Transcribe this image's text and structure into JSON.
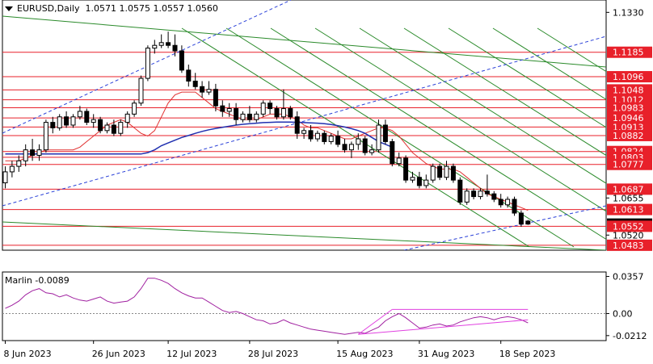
{
  "header": {
    "symbol_tf": "EURUSD,Daily",
    "ohlc": "1.0571 1.0575 1.0557 1.0560"
  },
  "indicator": {
    "name": "Marlin",
    "value": "-0.0089",
    "scale": [
      "0.0357",
      "0.00",
      "-0.0212"
    ]
  },
  "colors": {
    "resistance": "#e8202a",
    "channel_green": "#2a8a2a",
    "channel_blue": "#2a40d8",
    "ma_red": "#e03030",
    "ma_blue": "#2030b0",
    "oscillator": "#a020a0",
    "triangle": "#e040e0",
    "current_price": "#000000"
  },
  "chart_data": {
    "type": "candlestick",
    "title": "EURUSD,Daily",
    "ylim": [
      1.0465,
      1.1375
    ],
    "price_labels": [
      {
        "text": "1.1330",
        "value": 1.133,
        "style": "plain"
      },
      {
        "text": "1.1185",
        "value": 1.1185,
        "style": "red"
      },
      {
        "text": "1.1096",
        "value": 1.1096,
        "style": "red"
      },
      {
        "text": "1.1048",
        "value": 1.1048,
        "style": "red"
      },
      {
        "text": "1.1012",
        "value": 1.1012,
        "style": "red"
      },
      {
        "text": "1.0983",
        "value": 1.0983,
        "style": "red"
      },
      {
        "text": "1.0946",
        "value": 1.0946,
        "style": "red"
      },
      {
        "text": "1.0913",
        "value": 1.0913,
        "style": "red"
      },
      {
        "text": "1.0882",
        "value": 1.0882,
        "style": "red"
      },
      {
        "text": "1.0824",
        "value": 1.0824,
        "style": "red"
      },
      {
        "text": "1.0803",
        "value": 1.0803,
        "style": "red"
      },
      {
        "text": "1.0777",
        "value": 1.0777,
        "style": "red"
      },
      {
        "text": "1.0687",
        "value": 1.0687,
        "style": "red"
      },
      {
        "text": "1.0655",
        "value": 1.0655,
        "style": "plain"
      },
      {
        "text": "1.0613",
        "value": 1.0613,
        "style": "red"
      },
      {
        "text": "1.0560",
        "value": 1.056,
        "style": "current"
      },
      {
        "text": "1.0552",
        "value": 1.0552,
        "style": "red"
      },
      {
        "text": "1.0520",
        "value": 1.052,
        "style": "plain"
      },
      {
        "text": "1.0483",
        "value": 1.0483,
        "style": "red"
      }
    ],
    "x_tick_labels": [
      "8 Jun 2023",
      "26 Jun 2023",
      "12 Jul 2023",
      "28 Jul 2023",
      "15 Aug 2023",
      "31 Aug 2023",
      "18 Sep 2023"
    ],
    "x_tick_index": [
      0,
      13,
      24,
      36,
      49,
      61,
      73
    ],
    "candles": [
      [
        1.071,
        1.077,
        1.069,
        1.075
      ],
      [
        1.075,
        1.079,
        1.073,
        1.077
      ],
      [
        1.077,
        1.081,
        1.075,
        1.079
      ],
      [
        1.079,
        1.085,
        1.077,
        1.083
      ],
      [
        1.083,
        1.087,
        1.079,
        1.081
      ],
      [
        1.081,
        1.085,
        1.079,
        1.083
      ],
      [
        1.083,
        1.094,
        1.082,
        1.093
      ],
      [
        1.093,
        1.095,
        1.089,
        1.091
      ],
      [
        1.091,
        1.096,
        1.09,
        1.095
      ],
      [
        1.095,
        1.097,
        1.091,
        1.092
      ],
      [
        1.092,
        1.096,
        1.091,
        1.095
      ],
      [
        1.095,
        1.099,
        1.094,
        1.097
      ],
      [
        1.097,
        1.098,
        1.092,
        1.093
      ],
      [
        1.093,
        1.096,
        1.091,
        1.094
      ],
      [
        1.094,
        1.095,
        1.089,
        1.09
      ],
      [
        1.09,
        1.093,
        1.089,
        1.092
      ],
      [
        1.092,
        1.094,
        1.088,
        1.089
      ],
      [
        1.089,
        1.094,
        1.088,
        1.093
      ],
      [
        1.093,
        1.097,
        1.091,
        1.096
      ],
      [
        1.096,
        1.101,
        1.095,
        1.1
      ],
      [
        1.1,
        1.11,
        1.099,
        1.109
      ],
      [
        1.109,
        1.121,
        1.108,
        1.12
      ],
      [
        1.12,
        1.123,
        1.118,
        1.121
      ],
      [
        1.121,
        1.125,
        1.12,
        1.122
      ],
      [
        1.122,
        1.126,
        1.12,
        1.121
      ],
      [
        1.121,
        1.125,
        1.117,
        1.119
      ],
      [
        1.119,
        1.121,
        1.111,
        1.112
      ],
      [
        1.112,
        1.114,
        1.106,
        1.108
      ],
      [
        1.108,
        1.111,
        1.105,
        1.106
      ],
      [
        1.106,
        1.108,
        1.102,
        1.104
      ],
      [
        1.104,
        1.108,
        1.103,
        1.105
      ],
      [
        1.105,
        1.107,
        1.097,
        1.099
      ],
      [
        1.099,
        1.101,
        1.095,
        1.097
      ],
      [
        1.097,
        1.1,
        1.095,
        1.098
      ],
      [
        1.098,
        1.1,
        1.092,
        1.094
      ],
      [
        1.094,
        1.097,
        1.093,
        1.096
      ],
      [
        1.096,
        1.099,
        1.093,
        1.094
      ],
      [
        1.094,
        1.097,
        1.093,
        1.096
      ],
      [
        1.096,
        1.101,
        1.095,
        1.1
      ],
      [
        1.1,
        1.101,
        1.096,
        1.098
      ],
      [
        1.098,
        1.099,
        1.094,
        1.095
      ],
      [
        1.095,
        1.105,
        1.094,
        1.098
      ],
      [
        1.098,
        1.099,
        1.094,
        1.095
      ],
      [
        1.095,
        1.097,
        1.087,
        1.089
      ],
      [
        1.089,
        1.091,
        1.087,
        1.09
      ],
      [
        1.09,
        1.092,
        1.086,
        1.087
      ],
      [
        1.087,
        1.09,
        1.086,
        1.089
      ],
      [
        1.089,
        1.09,
        1.085,
        1.086
      ],
      [
        1.086,
        1.089,
        1.085,
        1.088
      ],
      [
        1.088,
        1.09,
        1.084,
        1.085
      ],
      [
        1.085,
        1.087,
        1.082,
        1.083
      ],
      [
        1.083,
        1.086,
        1.08,
        1.085
      ],
      [
        1.085,
        1.089,
        1.083,
        1.087
      ],
      [
        1.087,
        1.088,
        1.081,
        1.082
      ],
      [
        1.082,
        1.085,
        1.081,
        1.083
      ],
      [
        1.083,
        1.094,
        1.082,
        1.092
      ],
      [
        1.092,
        1.094,
        1.085,
        1.086
      ],
      [
        1.086,
        1.087,
        1.077,
        1.078
      ],
      [
        1.078,
        1.082,
        1.077,
        1.08
      ],
      [
        1.08,
        1.081,
        1.071,
        1.072
      ],
      [
        1.072,
        1.075,
        1.071,
        1.073
      ],
      [
        1.073,
        1.075,
        1.069,
        1.07
      ],
      [
        1.07,
        1.074,
        1.069,
        1.072
      ],
      [
        1.072,
        1.078,
        1.071,
        1.077
      ],
      [
        1.077,
        1.078,
        1.072,
        1.073
      ],
      [
        1.073,
        1.079,
        1.072,
        1.077
      ],
      [
        1.077,
        1.078,
        1.071,
        1.072
      ],
      [
        1.072,
        1.073,
        1.063,
        1.064
      ],
      [
        1.064,
        1.069,
        1.063,
        1.068
      ],
      [
        1.068,
        1.069,
        1.065,
        1.066
      ],
      [
        1.066,
        1.069,
        1.065,
        1.068
      ],
      [
        1.068,
        1.074,
        1.066,
        1.067
      ],
      [
        1.067,
        1.068,
        1.064,
        1.065
      ],
      [
        1.065,
        1.067,
        1.062,
        1.063
      ],
      [
        1.063,
        1.066,
        1.062,
        1.065
      ],
      [
        1.065,
        1.066,
        1.059,
        1.06
      ],
      [
        1.06,
        1.061,
        1.055,
        1.056
      ],
      [
        1.0571,
        1.0575,
        1.0557,
        1.056
      ]
    ],
    "ma_red": [
      1.079,
      1.079,
      1.079,
      1.08,
      1.081,
      1.082,
      1.083,
      1.083,
      1.083,
      1.083,
      1.083,
      1.084,
      1.086,
      1.088,
      1.09,
      1.092,
      1.093,
      1.094,
      1.093,
      1.091,
      1.089,
      1.088,
      1.09,
      1.095,
      1.1,
      1.103,
      1.104,
      1.104,
      1.104,
      1.102,
      1.1,
      1.098,
      1.097,
      1.096,
      1.095,
      1.094,
      1.094,
      1.094,
      1.095,
      1.096,
      1.096,
      1.096,
      1.095,
      1.094,
      1.092,
      1.091,
      1.091,
      1.09,
      1.089,
      1.088,
      1.087,
      1.087,
      1.088,
      1.089,
      1.09,
      1.091,
      1.091,
      1.09,
      1.088,
      1.085,
      1.082,
      1.08,
      1.078,
      1.077,
      1.076,
      1.076,
      1.076,
      1.075,
      1.073,
      1.071,
      1.069,
      1.067,
      1.066,
      1.065,
      1.064,
      1.063,
      1.062,
      1.061
    ],
    "ma_blue": [
      1.0815,
      1.0815,
      1.0815,
      1.0815,
      1.0815,
      1.0815,
      1.0815,
      1.0815,
      1.0815,
      1.0815,
      1.0815,
      1.0815,
      1.0815,
      1.0815,
      1.0815,
      1.0815,
      1.0815,
      1.0815,
      1.0815,
      1.0815,
      1.0815,
      1.082,
      1.083,
      1.0845,
      1.0855,
      1.0865,
      1.0875,
      1.0882,
      1.089,
      1.0897,
      1.0903,
      1.0908,
      1.0912,
      1.0916,
      1.092,
      1.0923,
      1.0925,
      1.0927,
      1.0929,
      1.093,
      1.0931,
      1.0931,
      1.0931,
      1.093,
      1.0929,
      1.0928,
      1.0927,
      1.0925,
      1.0922,
      1.0918,
      1.0913,
      1.0907,
      1.09,
      1.089,
      1.0875,
      1.086,
      1.085,
      1.084
    ],
    "indicator_values": [
      0.005,
      0.008,
      0.012,
      0.018,
      0.022,
      0.024,
      0.02,
      0.019,
      0.016,
      0.018,
      0.015,
      0.013,
      0.012,
      0.014,
      0.016,
      0.012,
      0.01,
      0.011,
      0.012,
      0.016,
      0.024,
      0.034,
      0.034,
      0.032,
      0.029,
      0.024,
      0.02,
      0.017,
      0.015,
      0.015,
      0.011,
      0.007,
      0.003,
      0.001,
      0.002,
      0.0,
      -0.003,
      -0.006,
      -0.007,
      -0.01,
      -0.009,
      -0.006,
      -0.009,
      -0.011,
      -0.013,
      -0.015,
      -0.016,
      -0.017,
      -0.018,
      -0.019,
      -0.02,
      -0.019,
      -0.018,
      -0.019,
      -0.016,
      -0.013,
      -0.007,
      -0.003,
      0.0,
      -0.004,
      -0.009,
      -0.014,
      -0.013,
      -0.011,
      -0.01,
      -0.012,
      -0.011,
      -0.008,
      -0.006,
      -0.004,
      -0.003,
      -0.004,
      -0.006,
      -0.004,
      -0.003,
      -0.004,
      -0.006,
      -0.0089
    ],
    "indicator_ylim": [
      -0.026,
      0.04
    ]
  }
}
